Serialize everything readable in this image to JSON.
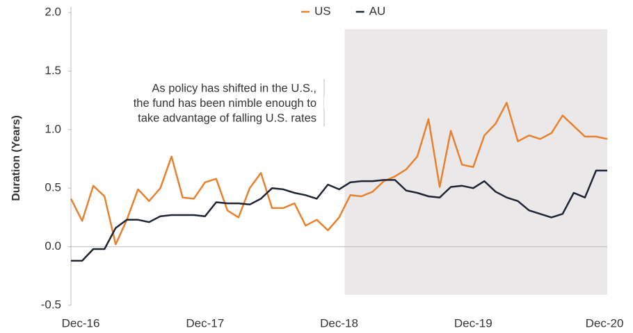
{
  "chart_data": {
    "type": "line",
    "y_label": "Duration (Years)",
    "categories": [
      "Dec-16",
      null,
      null,
      null,
      null,
      null,
      null,
      null,
      null,
      null,
      null,
      null,
      "Dec-17",
      null,
      null,
      null,
      null,
      null,
      null,
      null,
      null,
      null,
      null,
      null,
      "Dec-18",
      null,
      null,
      null,
      null,
      null,
      null,
      null,
      null,
      null,
      null,
      null,
      "Dec-19",
      null,
      null,
      null,
      null,
      null,
      null,
      null,
      null,
      null,
      null,
      null,
      "Dec-20"
    ],
    "series": [
      {
        "name": "US",
        "color": "#e8802e",
        "values": [
          0.41,
          0.22,
          0.52,
          0.43,
          0.02,
          0.23,
          0.49,
          0.39,
          0.5,
          0.77,
          0.42,
          0.41,
          0.55,
          0.58,
          0.31,
          0.25,
          0.5,
          0.63,
          0.33,
          0.33,
          0.37,
          0.18,
          0.23,
          0.14,
          0.25,
          0.44,
          0.43,
          0.47,
          0.56,
          0.6,
          0.66,
          0.77,
          1.09,
          0.51,
          0.99,
          0.7,
          0.68,
          0.95,
          1.05,
          1.23,
          0.9,
          0.95,
          0.92,
          0.97,
          1.12,
          1.03,
          0.94,
          0.94,
          0.92
        ]
      },
      {
        "name": "AU",
        "color": "#1f2433",
        "values": [
          -0.12,
          -0.12,
          -0.02,
          -0.02,
          0.16,
          0.23,
          0.23,
          0.21,
          0.26,
          0.27,
          0.27,
          0.27,
          0.26,
          0.38,
          0.37,
          0.37,
          0.36,
          0.41,
          0.5,
          0.49,
          0.46,
          0.44,
          0.41,
          0.53,
          0.49,
          0.55,
          0.56,
          0.56,
          0.57,
          0.57,
          0.48,
          0.46,
          0.43,
          0.42,
          0.51,
          0.52,
          0.5,
          0.56,
          0.47,
          0.42,
          0.39,
          0.31,
          0.28,
          0.25,
          0.28,
          0.46,
          0.42,
          0.65,
          0.65
        ]
      }
    ],
    "ylim": [
      -0.5,
      2.0
    ],
    "yticks": [
      {
        "value": 2.0,
        "label": "2.0"
      },
      1.5,
      {
        "value": 1.0,
        "label": "1.0"
      },
      0.5,
      {
        "value": 0.0,
        "label": "0.0"
      },
      -0.5
    ],
    "highlight_range": [
      "Dec-18",
      "Dec-20"
    ],
    "annotation": [
      "As policy has shifted in the U.S.,",
      "the fund has been nimble enough to",
      "take advantage of falling U.S. rates"
    ],
    "legend": "top"
  }
}
